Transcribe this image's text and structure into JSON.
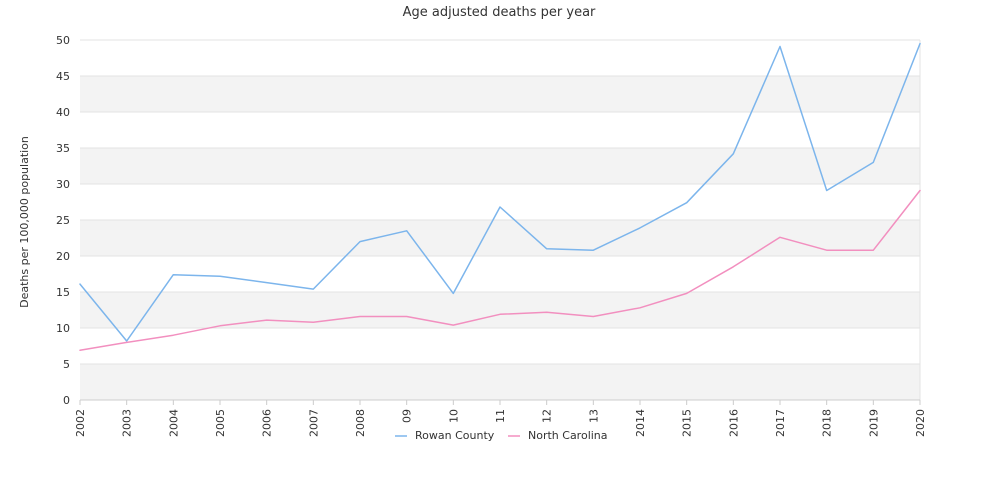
{
  "chart_data": {
    "type": "line",
    "title": "Age adjusted deaths per year",
    "xlabel": "",
    "ylabel": "Deaths per 100,000 population",
    "categories": [
      "2002",
      "2003",
      "2004",
      "2005",
      "2006",
      "2007",
      "2008",
      "09",
      "10",
      "11",
      "12",
      "13",
      "2014",
      "2015",
      "2016",
      "2017",
      "2018",
      "2019",
      "2020"
    ],
    "ylim": [
      0,
      50
    ],
    "yticks": [
      0,
      5,
      10,
      15,
      20,
      25,
      30,
      35,
      40,
      45,
      50
    ],
    "grid": "horizontal alternating bands",
    "legend_position": "bottom",
    "series": [
      {
        "name": "Rowan County",
        "color": "#7cb5ec",
        "values": [
          16.1,
          8.2,
          17.4,
          17.2,
          16.3,
          15.4,
          22.0,
          23.5,
          14.8,
          26.8,
          21.0,
          20.8,
          23.9,
          27.4,
          34.2,
          49.1,
          29.1,
          33.0,
          49.5
        ]
      },
      {
        "name": "North Carolina",
        "color": "#f28fbf",
        "values": [
          6.9,
          8.0,
          9.0,
          10.3,
          11.1,
          10.8,
          11.6,
          11.6,
          10.4,
          11.9,
          12.2,
          11.6,
          12.8,
          14.8,
          18.5,
          22.6,
          20.8,
          20.8,
          29.1
        ]
      }
    ]
  }
}
